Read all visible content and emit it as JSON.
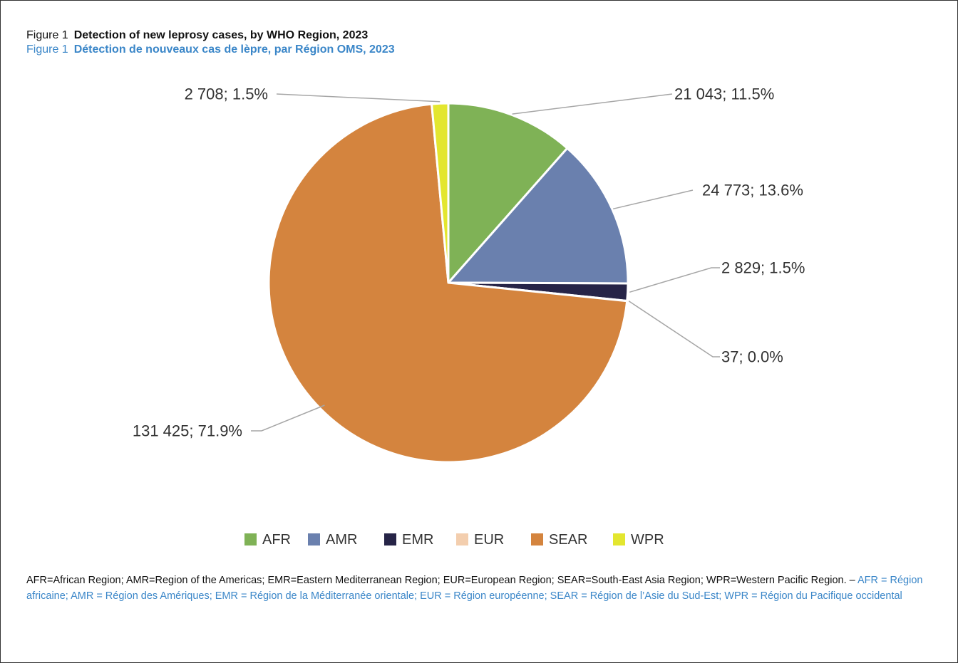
{
  "figure": {
    "title_en_prefix": "Figure 1",
    "title_en": "Detection of new leprosy cases, by WHO Region, 2023",
    "title_fr_prefix": "Figure 1",
    "title_fr": "Détection de nouveaux cas de lèpre, par Région OMS, 2023",
    "footnote_en": "AFR=African Region; AMR=Region of the Americas; EMR=Eastern Mediterranean Region; EUR=European Region; SEAR=South-East Asia Region; WPR=Western Pacific Region. – ",
    "footnote_fr": "AFR = Région africaine; AMR = Région des Amériques; EMR = Région de la Méditerranée orientale; EUR = Région européenne; SEAR = Région de l’Asie du Sud-Est; WPR = Région du Pacifique occidental"
  },
  "chart_data": {
    "type": "pie",
    "title": "Detection of new leprosy cases, by WHO Region, 2023",
    "legend_position": "bottom",
    "slices": [
      {
        "category": "AFR",
        "value": 21043,
        "percent": 11.5,
        "label": "21 043; 11.5%",
        "color": "#7fb256"
      },
      {
        "category": "AMR",
        "value": 24773,
        "percent": 13.6,
        "label": "24 773; 13.6%",
        "color": "#6a80ae"
      },
      {
        "category": "EMR",
        "value": 2829,
        "percent": 1.5,
        "label": "2 829; 1.5%",
        "color": "#262447"
      },
      {
        "category": "EUR",
        "value": 37,
        "percent": 0.0,
        "label": "37; 0.0%",
        "color": "#f3ceae"
      },
      {
        "category": "SEAR",
        "value": 131425,
        "percent": 71.9,
        "label": "131 425; 71.9%",
        "color": "#d4843e"
      },
      {
        "category": "WPR",
        "value": 2708,
        "percent": 1.5,
        "label": "2 708; 1.5%",
        "color": "#e3e62f"
      }
    ]
  }
}
